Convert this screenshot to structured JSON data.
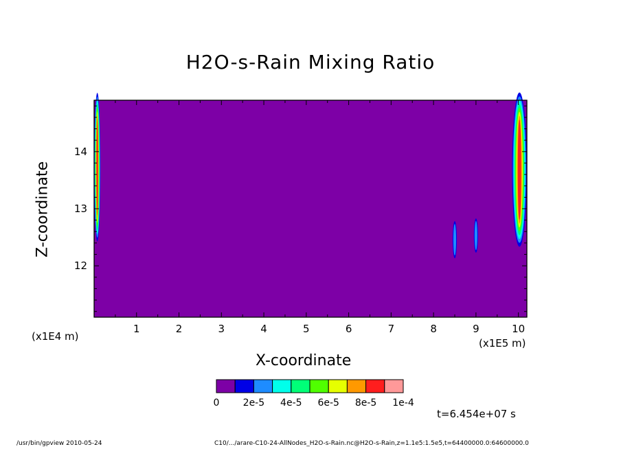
{
  "chart_data": {
    "type": "heatmap",
    "title": "H2O-s-Rain Mixing Ratio",
    "xlabel": "X-coordinate",
    "ylabel": "Z-coordinate",
    "x_unit": "(x1E5 m)",
    "y_unit": "(x1E4 m)",
    "xlim": [
      0,
      10.2
    ],
    "ylim": [
      11.1,
      14.9
    ],
    "x_ticks": [
      1,
      2,
      3,
      4,
      5,
      6,
      7,
      8,
      9,
      10
    ],
    "y_ticks": [
      12,
      13,
      14
    ],
    "background_value": 0,
    "colorbar": {
      "colors": [
        "#7d00a6",
        "#0000e6",
        "#1e8cff",
        "#00ffea",
        "#00ff78",
        "#50ff00",
        "#e6ff00",
        "#ff9900",
        "#ff1e1e",
        "#ff9999"
      ],
      "tick_labels": [
        "0",
        "2e-5",
        "4e-5",
        "6e-5",
        "8e-5",
        "1e-4"
      ]
    },
    "features": [
      {
        "x_range": [
          0.0,
          0.15
        ],
        "z_range": [
          12.3,
          14.9
        ],
        "max_value": 8e-05
      },
      {
        "x_range": [
          9.85,
          10.2
        ],
        "z_range": [
          12.2,
          14.9
        ],
        "max_value": 8e-05
      },
      {
        "x_range": [
          8.45,
          8.55
        ],
        "z_range": [
          12.1,
          12.75
        ],
        "max_value": 2e-05
      },
      {
        "x_range": [
          8.95,
          9.05
        ],
        "z_range": [
          12.2,
          12.8
        ],
        "max_value": 2e-05
      }
    ]
  },
  "time_label": "t=6.454e+07 s",
  "footer": {
    "left": "/usr/bin/gpview   2010-05-24",
    "right": "C10/.../arare-C10-24-AllNodes_H2O-s-Rain.nc@H2O-s-Rain,z=1.1e5:1.5e5,t=64400000.0:64600000.0"
  }
}
